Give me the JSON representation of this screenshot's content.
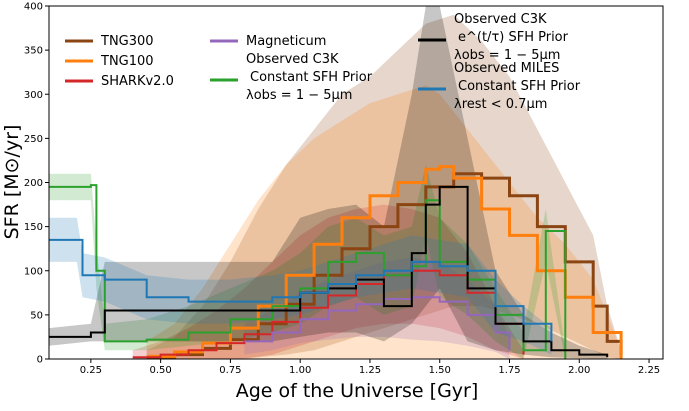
{
  "chart_data": {
    "type": "line",
    "title": "",
    "xlabel": "Age of the Universe [Gyr]",
    "ylabel": "SFR  [M⊙/yr]",
    "xlim": [
      0.1,
      2.3
    ],
    "ylim": [
      0,
      400
    ],
    "x_ticks": [
      0.25,
      0.5,
      0.75,
      1.0,
      1.25,
      1.5,
      1.75,
      2.0,
      2.25
    ],
    "x_tick_labels": [
      "0.25",
      "0.50",
      "0.75",
      "1.00",
      "1.25",
      "1.50",
      "1.75",
      "2.00",
      "2.25"
    ],
    "y_ticks": [
      0,
      50,
      100,
      150,
      200,
      250,
      300,
      350,
      400
    ],
    "y_tick_labels": [
      "0",
      "50",
      "100",
      "150",
      "200",
      "250",
      "300",
      "350",
      "400"
    ],
    "legend": [
      {
        "label": "TNG300",
        "color": "#8b4513"
      },
      {
        "label": "TNG100",
        "color": "#ff7f0e"
      },
      {
        "label": "SHARKv2.0",
        "color": "#d62728"
      },
      {
        "label": "Magneticum",
        "color": "#9467bd"
      },
      {
        "label": "Observed C3K",
        "label2": "Constant SFH Prior",
        "label3": "λobs = 1 − 5μm",
        "color": "#2ca02c"
      },
      {
        "label": "Observed C3K",
        "label2": "e^(t/τ) SFH Prior",
        "label3": "λobs = 1 − 5μm",
        "color": "#000000"
      },
      {
        "label": "Observed MILES",
        "label2": "Constant SFH Prior",
        "label3": "λrest < 0.7μm",
        "color": "#1f77b4"
      }
    ],
    "series": [
      {
        "name": "TNG300",
        "color": "#8b4513",
        "x": [
          0.45,
          0.55,
          0.65,
          0.75,
          0.85,
          0.95,
          1.05,
          1.15,
          1.25,
          1.35,
          1.45,
          1.55,
          1.65,
          1.75,
          1.85,
          1.95,
          2.05,
          2.1,
          2.15
        ],
        "values": [
          2,
          5,
          12,
          22,
          40,
          62,
          95,
          125,
          150,
          175,
          195,
          210,
          205,
          185,
          150,
          110,
          60,
          20,
          5
        ],
        "upper": [
          10,
          25,
          60,
          110,
          170,
          220,
          260,
          300,
          320,
          350,
          380,
          390,
          360,
          320,
          260,
          200,
          140,
          60,
          10
        ],
        "lower": [
          0,
          0,
          0,
          0,
          2,
          5,
          10,
          20,
          30,
          40,
          50,
          60,
          60,
          50,
          40,
          25,
          10,
          2,
          0
        ]
      },
      {
        "name": "TNG100",
        "color": "#ff7f0e",
        "x": [
          0.45,
          0.55,
          0.65,
          0.75,
          0.85,
          0.95,
          1.05,
          1.15,
          1.25,
          1.35,
          1.45,
          1.5,
          1.55,
          1.65,
          1.75,
          1.85,
          1.95,
          2.05,
          2.15
        ],
        "values": [
          3,
          8,
          18,
          35,
          60,
          95,
          130,
          160,
          185,
          200,
          215,
          218,
          205,
          170,
          140,
          100,
          70,
          30,
          0
        ],
        "upper": [
          20,
          40,
          80,
          130,
          180,
          220,
          250,
          270,
          290,
          300,
          310,
          300,
          280,
          240,
          200,
          160,
          130,
          90,
          10
        ],
        "lower": [
          0,
          0,
          0,
          0,
          0,
          0,
          0,
          0,
          0,
          0,
          0,
          0,
          0,
          0,
          0,
          0,
          0,
          0,
          0
        ]
      },
      {
        "name": "SHARKv2.0",
        "color": "#d62728",
        "x": [
          0.4,
          0.5,
          0.6,
          0.7,
          0.8,
          0.9,
          1.0,
          1.1,
          1.2,
          1.3,
          1.4,
          1.5,
          1.6,
          1.7,
          1.8
        ],
        "values": [
          2,
          5,
          10,
          18,
          28,
          42,
          58,
          72,
          85,
          95,
          100,
          95,
          75,
          40,
          5
        ],
        "upper": [
          10,
          20,
          35,
          55,
          80,
          110,
          140,
          160,
          170,
          175,
          170,
          160,
          120,
          60,
          10
        ],
        "lower": [
          0,
          0,
          0,
          0,
          0,
          5,
          15,
          25,
          35,
          40,
          40,
          35,
          25,
          10,
          0
        ]
      },
      {
        "name": "Magneticum",
        "color": "#9467bd",
        "x": [
          0.8,
          0.9,
          1.0,
          1.1,
          1.2,
          1.3,
          1.4,
          1.5,
          1.6,
          1.7,
          1.75
        ],
        "values": [
          20,
          30,
          45,
          55,
          62,
          68,
          70,
          65,
          50,
          30,
          10
        ],
        "upper": [
          40,
          55,
          75,
          90,
          100,
          110,
          115,
          110,
          90,
          60,
          25
        ],
        "lower": [
          5,
          10,
          18,
          22,
          25,
          25,
          22,
          20,
          15,
          8,
          0
        ]
      },
      {
        "name": "Observed C3K Constant SFH Prior",
        "color": "#2ca02c",
        "x": [
          0.1,
          0.25,
          0.27,
          0.3,
          0.45,
          0.6,
          0.75,
          0.9,
          1.0,
          1.1,
          1.2,
          1.3,
          1.4,
          1.45,
          1.5,
          1.6,
          1.7,
          1.8,
          1.88,
          1.95
        ],
        "values": [
          195,
          197,
          100,
          20,
          22,
          30,
          45,
          60,
          80,
          110,
          120,
          95,
          105,
          180,
          110,
          90,
          50,
          10,
          145,
          0
        ],
        "upper": [
          210,
          210,
          130,
          40,
          45,
          60,
          80,
          100,
          120,
          150,
          160,
          140,
          150,
          220,
          160,
          130,
          80,
          30,
          170,
          10
        ],
        "lower": [
          180,
          180,
          80,
          10,
          10,
          15,
          20,
          30,
          40,
          60,
          70,
          50,
          60,
          140,
          70,
          50,
          20,
          0,
          110,
          0
        ]
      },
      {
        "name": "Observed C3K exp SFH Prior",
        "color": "#000000",
        "x": [
          0.1,
          0.25,
          0.3,
          0.45,
          0.6,
          0.75,
          0.9,
          1.0,
          1.1,
          1.2,
          1.3,
          1.4,
          1.45,
          1.5,
          1.6,
          1.7,
          1.8,
          1.9,
          2.0,
          2.1
        ],
        "values": [
          25,
          30,
          55,
          55,
          55,
          55,
          55,
          75,
          80,
          90,
          60,
          120,
          175,
          195,
          80,
          40,
          20,
          10,
          5,
          2
        ],
        "upper": [
          35,
          40,
          110,
          110,
          110,
          110,
          110,
          160,
          170,
          175,
          150,
          300,
          400,
          400,
          250,
          100,
          50,
          30,
          15,
          5
        ],
        "lower": [
          15,
          20,
          20,
          20,
          20,
          20,
          20,
          25,
          30,
          30,
          20,
          40,
          60,
          80,
          20,
          10,
          5,
          2,
          1,
          0
        ]
      },
      {
        "name": "Observed MILES Constant SFH Prior",
        "color": "#1f77b4",
        "x": [
          0.1,
          0.2,
          0.22,
          0.3,
          0.45,
          0.6,
          0.75,
          0.9,
          1.0,
          1.1,
          1.2,
          1.3,
          1.4,
          1.5,
          1.6,
          1.7,
          1.8,
          1.9
        ],
        "values": [
          135,
          135,
          95,
          90,
          70,
          65,
          65,
          70,
          75,
          85,
          95,
          100,
          110,
          105,
          100,
          60,
          40,
          20
        ],
        "upper": [
          160,
          160,
          120,
          115,
          95,
          90,
          90,
          95,
          100,
          110,
          120,
          130,
          140,
          135,
          130,
          90,
          60,
          35
        ],
        "lower": [
          110,
          110,
          70,
          65,
          45,
          40,
          40,
          45,
          50,
          60,
          70,
          75,
          80,
          75,
          70,
          30,
          20,
          5
        ]
      }
    ]
  }
}
